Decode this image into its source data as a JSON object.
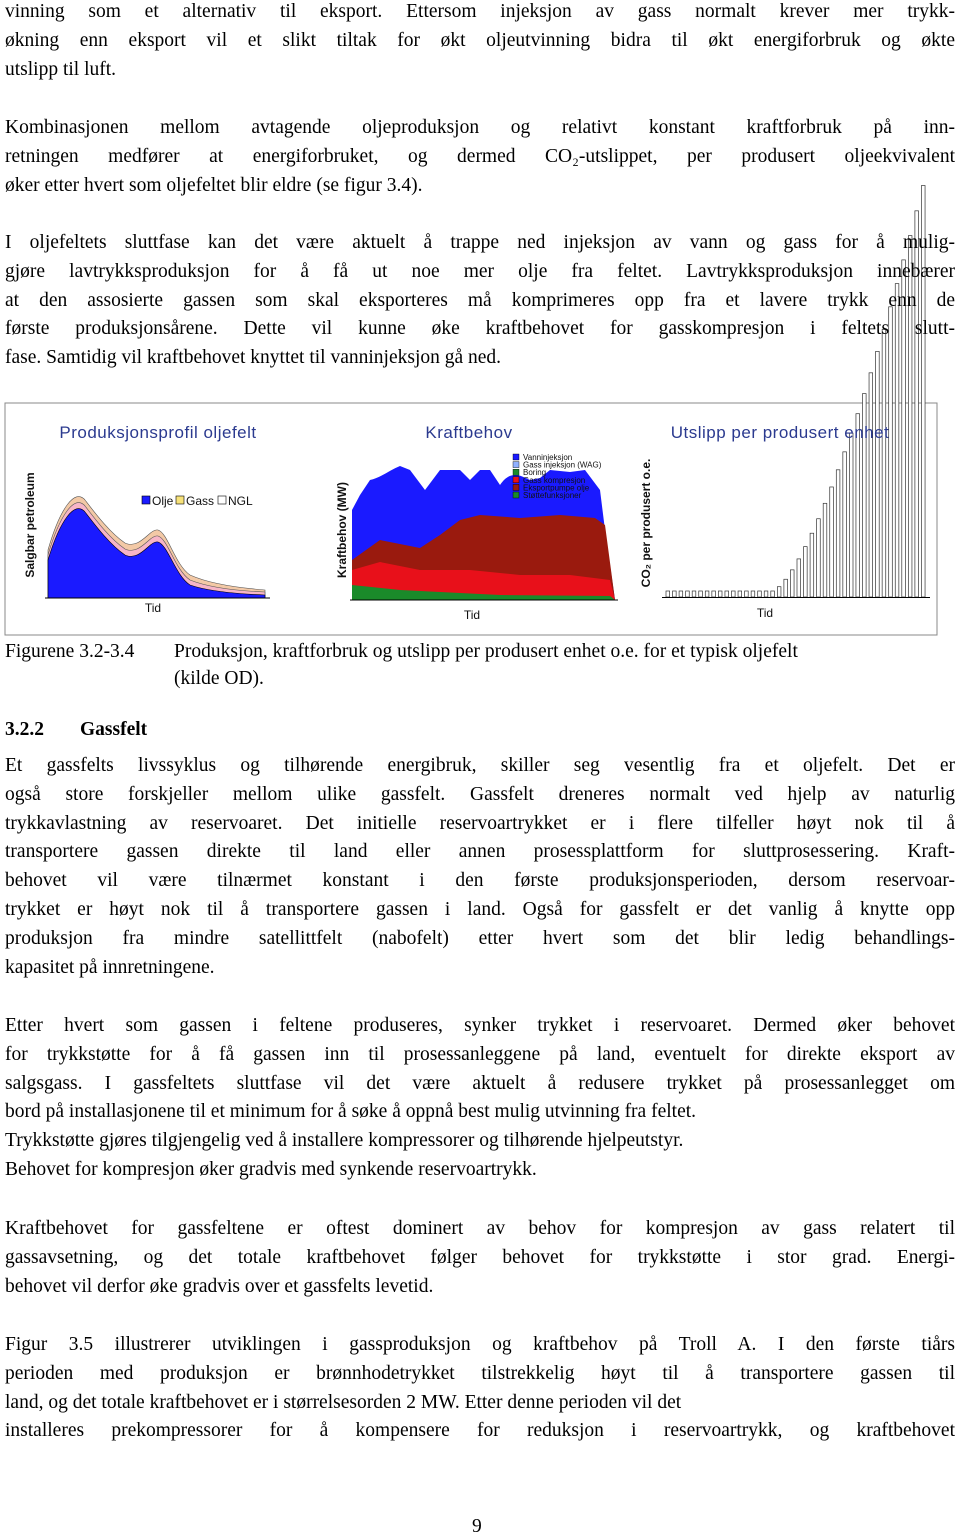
{
  "paragraphs": [
    {
      "lines": [
        "vinning som et alternativ til eksport. Ettersom injeksjon av gass normalt krever mer trykk-",
        "økning enn eksport vil et slikt tiltak for økt oljeutvinning bidra til økt energiforbruk og økte",
        "utslipp til luft."
      ]
    },
    {
      "lines": [
        "Kombinasjonen mellom avtagende oljeproduksjon og relativt konstant kraftforbruk på inn-",
        "retningen medfører at energiforbruket, og dermed CO₂-utslippet, per produsert oljeekvivalent",
        "øker etter hvert som oljefeltet blir eldre (se figur 3.4)."
      ]
    },
    {
      "lines": [
        "I oljefeltets sluttfase kan det være aktuelt å trappe ned injeksjon av vann og gass for å mulig-",
        "gjøre lavtrykksproduksjon for å få ut noe mer olje fra feltet. Lavtrykksproduksjon innebærer",
        "at den assosierte gassen som skal eksporteres må komprimeres opp fra et lavere trykk enn de",
        "første produksjonsårene. Dette vil kunne øke kraftbehovet for gasskompresjon i feltets slutt-",
        "fase. Samtidig vil kraftbehovet knyttet til vanninjeksjon gå ned."
      ]
    },
    {
      "lines": [
        "Et gassfelts livssyklus og tilhørende energibruk, skiller seg vesentlig fra et oljefelt. Det er",
        "også store forskjeller mellom ulike gassfelt. Gassfelt dreneres normalt ved hjelp av naturlig",
        "trykkavlastning av reservoaret. Det initielle reservoartrykket er i flere tilfeller høyt nok til å",
        "transportere gassen direkte til land eller annen prosessplattform for sluttprosessering. Kraft-",
        "behovet vil være tilnærmet konstant i den første produksjonsperioden, dersom reservoar-",
        "trykket er høyt nok til å transportere gassen i land. Også for gassfelt er det vanlig å knytte opp",
        "produksjon fra mindre satellittfelt (nabofelt) etter hvert som det blir ledig behandlings-",
        "kapasitet på innretningene."
      ]
    },
    {
      "lines": [
        "Etter hvert som gassen i feltene produseres, synker trykket i reservoaret. Dermed øker behovet",
        "for trykkstøtte for å få gassen inn til prosessanleggene på land, eventuelt for direkte eksport av",
        "salgsgass. I gassfeltets sluttfase vil det være aktuelt å redusere trykket på prosessanlegget om",
        "bord på installasjonene til et minimum for å søke å oppnå best mulig utvinning fra feltet.",
        "Trykkstøtte gjøres tilgjengelig ved å installere kompressorer og tilhørende hjelpeutstyr.",
        "Behovet for kompresjon øker gradvis med synkende reservoartrykk."
      ]
    },
    {
      "lines": [
        "Kraftbehovet for gassfeltene er oftest dominert av behov for kompresjon av gass relatert til",
        "gassavsetning, og det totale kraftbehovet følger behovet for trykkstøtte i stor grad. Energi-",
        "behovet vil derfor øke gradvis over et gassfelts levetid."
      ]
    },
    {
      "lines": [
        "Figur 3.5 illustrerer utviklingen i gassproduksjon og kraftbehov på Troll A. I den første tiårs",
        "perioden med produksjon er brønnhodetrykket tilstrekkelig høyt til å transportere gassen til",
        "land, og det totale kraftbehovet er i størrelsesorden 2 MW. Etter denne perioden vil det",
        "installeres prekompressorer for å kompensere for reduksjon i reservoartrykk, og kraftbehovet"
      ]
    }
  ],
  "figure": {
    "panels": [
      {
        "title": "Produksjonsprofil oljefelt",
        "y_label": "Salgbar petroleum",
        "x_label": "Tid",
        "legend": [
          "Olje",
          "Gass",
          "NGL"
        ]
      },
      {
        "title": "Kraftbehov",
        "y_label": "Kraftbehov (MW)",
        "x_label": "Tid",
        "legend": [
          "Vanninjeksjon",
          "Gass injeksjon (WAG)",
          "Boring",
          "Gass kompresjon",
          "Eksportpumpe olje",
          "Støttefunksjoner"
        ]
      },
      {
        "title": "Utslipp per produsert enhet",
        "y_label": "CO₂ per produsert o.e.",
        "x_label": "Tid"
      }
    ]
  },
  "caption": {
    "label": "Figurene 3.2-3.4",
    "lines": [
      "Produksjon, kraftforbruk og utslipp per produsert enhet o.e. for et typisk oljefelt",
      "(kilde OD)."
    ]
  },
  "heading": {
    "number": "3.2.2",
    "title": "Gassfelt"
  },
  "page_number": "9"
}
